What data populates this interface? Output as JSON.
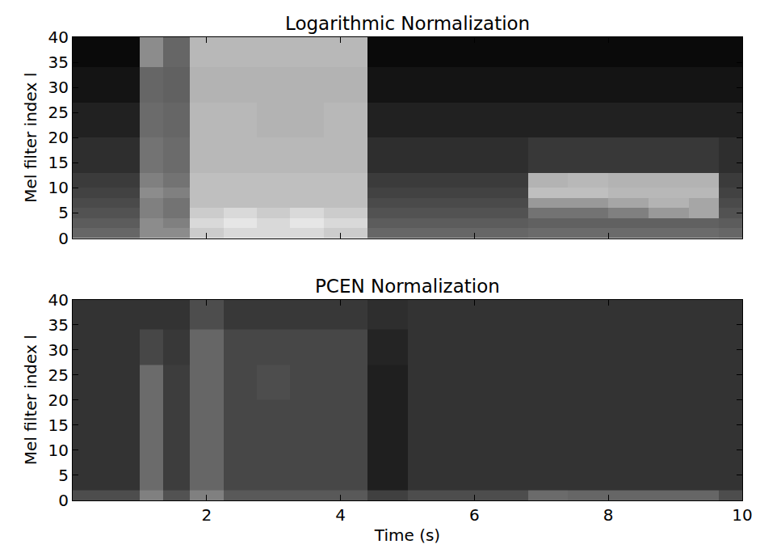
{
  "chart_data": [
    {
      "type": "heatmap",
      "title": "Logarithmic Normalization",
      "ylabel": "Mel filter index l",
      "tick_labels": "y",
      "xlim": [
        0,
        10
      ],
      "xticks": [
        2,
        4,
        6,
        8,
        10
      ],
      "ylim": [
        0,
        40
      ],
      "yticks": [
        0,
        5,
        10,
        15,
        20,
        25,
        30,
        35,
        40
      ],
      "zlim": [
        0,
        1
      ],
      "x": [
        0,
        0.5,
        1.0,
        1.35,
        1.75,
        2.25,
        2.75,
        3.25,
        3.75,
        4.4,
        5.0,
        5.5,
        6.0,
        6.4,
        6.8,
        7.4,
        8.0,
        8.6,
        9.2,
        9.65,
        10
      ],
      "y": [
        0,
        2,
        4,
        6,
        8,
        10,
        13,
        20,
        27,
        34,
        40
      ],
      "z": [
        [
          0.4,
          0.4,
          0.55,
          0.55,
          0.8,
          0.85,
          0.85,
          0.85,
          0.8,
          0.4,
          0.4,
          0.4,
          0.4,
          0.4,
          0.42,
          0.42,
          0.42,
          0.42,
          0.42,
          0.4
        ],
        [
          0.36,
          0.36,
          0.55,
          0.5,
          0.85,
          0.9,
          0.85,
          0.9,
          0.85,
          0.36,
          0.36,
          0.36,
          0.36,
          0.36,
          0.38,
          0.38,
          0.38,
          0.38,
          0.38,
          0.36
        ],
        [
          0.32,
          0.32,
          0.5,
          0.45,
          0.8,
          0.85,
          0.8,
          0.85,
          0.8,
          0.32,
          0.32,
          0.32,
          0.32,
          0.32,
          0.45,
          0.45,
          0.5,
          0.6,
          0.65,
          0.32
        ],
        [
          0.29,
          0.29,
          0.5,
          0.45,
          0.75,
          0.75,
          0.75,
          0.75,
          0.75,
          0.29,
          0.29,
          0.29,
          0.29,
          0.29,
          0.6,
          0.6,
          0.65,
          0.7,
          0.65,
          0.29
        ],
        [
          0.26,
          0.26,
          0.55,
          0.5,
          0.75,
          0.75,
          0.75,
          0.75,
          0.75,
          0.26,
          0.26,
          0.26,
          0.26,
          0.26,
          0.75,
          0.75,
          0.72,
          0.72,
          0.72,
          0.26
        ],
        [
          0.23,
          0.23,
          0.5,
          0.45,
          0.75,
          0.75,
          0.75,
          0.75,
          0.75,
          0.23,
          0.23,
          0.23,
          0.23,
          0.23,
          0.7,
          0.72,
          0.7,
          0.7,
          0.7,
          0.23
        ],
        [
          0.18,
          0.18,
          0.45,
          0.42,
          0.72,
          0.72,
          0.72,
          0.72,
          0.72,
          0.18,
          0.18,
          0.18,
          0.18,
          0.18,
          0.22,
          0.22,
          0.22,
          0.22,
          0.22,
          0.18
        ],
        [
          0.13,
          0.13,
          0.42,
          0.4,
          0.72,
          0.72,
          0.7,
          0.7,
          0.72,
          0.13,
          0.13,
          0.13,
          0.13,
          0.13,
          0.13,
          0.13,
          0.13,
          0.13,
          0.13,
          0.13
        ],
        [
          0.08,
          0.08,
          0.4,
          0.38,
          0.7,
          0.7,
          0.7,
          0.7,
          0.7,
          0.08,
          0.08,
          0.08,
          0.08,
          0.08,
          0.08,
          0.08,
          0.08,
          0.08,
          0.08,
          0.08
        ],
        [
          0.04,
          0.04,
          0.55,
          0.4,
          0.72,
          0.72,
          0.72,
          0.72,
          0.72,
          0.04,
          0.04,
          0.04,
          0.04,
          0.04,
          0.04,
          0.04,
          0.04,
          0.04,
          0.04,
          0.04
        ]
      ]
    },
    {
      "type": "heatmap",
      "title": "PCEN Normalization",
      "ylabel": "Mel filter index l",
      "xlabel": "Time (s)",
      "xlim": [
        0,
        10
      ],
      "xticks": [
        2,
        4,
        6,
        8,
        10
      ],
      "ylim": [
        0,
        40
      ],
      "yticks": [
        0,
        5,
        10,
        15,
        20,
        25,
        30,
        35,
        40
      ],
      "zlim": [
        0,
        1
      ],
      "x": [
        0,
        0.5,
        1.0,
        1.35,
        1.75,
        2.25,
        2.75,
        3.25,
        3.75,
        4.4,
        5.0,
        5.5,
        6.0,
        6.4,
        6.8,
        7.4,
        8.0,
        8.6,
        9.2,
        9.65,
        10
      ],
      "y": [
        0,
        2,
        4,
        6,
        8,
        10,
        13,
        20,
        27,
        34,
        40
      ],
      "z": [
        [
          0.3,
          0.3,
          0.5,
          0.32,
          0.5,
          0.35,
          0.35,
          0.35,
          0.35,
          0.25,
          0.3,
          0.3,
          0.3,
          0.3,
          0.42,
          0.4,
          0.4,
          0.4,
          0.4,
          0.3
        ],
        [
          0.2,
          0.2,
          0.42,
          0.24,
          0.4,
          0.28,
          0.28,
          0.28,
          0.28,
          0.12,
          0.2,
          0.2,
          0.2,
          0.2,
          0.2,
          0.2,
          0.2,
          0.2,
          0.2,
          0.2
        ],
        [
          0.2,
          0.2,
          0.42,
          0.24,
          0.4,
          0.28,
          0.28,
          0.28,
          0.28,
          0.12,
          0.2,
          0.2,
          0.2,
          0.2,
          0.2,
          0.2,
          0.2,
          0.2,
          0.2,
          0.2
        ],
        [
          0.2,
          0.2,
          0.42,
          0.24,
          0.4,
          0.28,
          0.28,
          0.28,
          0.28,
          0.12,
          0.2,
          0.2,
          0.2,
          0.2,
          0.2,
          0.2,
          0.2,
          0.2,
          0.2,
          0.2
        ],
        [
          0.2,
          0.2,
          0.42,
          0.24,
          0.4,
          0.28,
          0.28,
          0.28,
          0.28,
          0.12,
          0.2,
          0.2,
          0.2,
          0.2,
          0.2,
          0.2,
          0.2,
          0.2,
          0.2,
          0.2
        ],
        [
          0.2,
          0.2,
          0.42,
          0.24,
          0.4,
          0.28,
          0.28,
          0.28,
          0.28,
          0.12,
          0.2,
          0.2,
          0.2,
          0.2,
          0.2,
          0.2,
          0.2,
          0.2,
          0.2,
          0.2
        ],
        [
          0.2,
          0.2,
          0.42,
          0.24,
          0.4,
          0.28,
          0.28,
          0.28,
          0.28,
          0.12,
          0.2,
          0.2,
          0.2,
          0.2,
          0.2,
          0.2,
          0.2,
          0.2,
          0.2,
          0.2
        ],
        [
          0.2,
          0.2,
          0.42,
          0.24,
          0.4,
          0.28,
          0.3,
          0.28,
          0.28,
          0.12,
          0.2,
          0.2,
          0.2,
          0.2,
          0.2,
          0.2,
          0.2,
          0.2,
          0.2,
          0.2
        ],
        [
          0.2,
          0.2,
          0.28,
          0.22,
          0.4,
          0.28,
          0.28,
          0.28,
          0.28,
          0.14,
          0.2,
          0.2,
          0.2,
          0.2,
          0.2,
          0.2,
          0.2,
          0.2,
          0.2,
          0.2
        ],
        [
          0.2,
          0.2,
          0.2,
          0.2,
          0.3,
          0.22,
          0.22,
          0.22,
          0.22,
          0.18,
          0.2,
          0.2,
          0.2,
          0.2,
          0.2,
          0.2,
          0.2,
          0.2,
          0.2,
          0.2
        ]
      ]
    }
  ]
}
